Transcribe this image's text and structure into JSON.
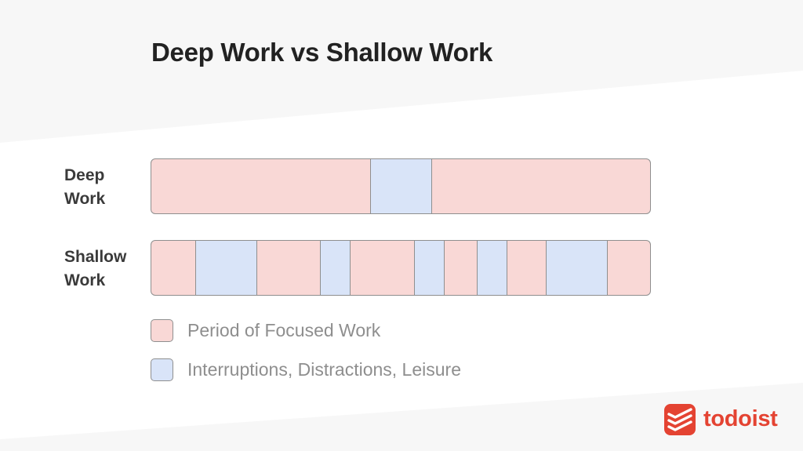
{
  "title": "Deep Work vs Shallow Work",
  "colors": {
    "focused": "#f9d8d6",
    "interruption": "#d9e4f8",
    "outline": "#8f8f8f",
    "brand": "#e44332"
  },
  "rows": [
    {
      "label_line1": "Deep",
      "label_line2": "Work",
      "interruptions": [
        {
          "start": 0.438,
          "end": 0.562
        }
      ]
    },
    {
      "label_line1": "Shallow",
      "label_line2": "Work",
      "interruptions": [
        {
          "start": 0.088,
          "end": 0.212
        },
        {
          "start": 0.338,
          "end": 0.4
        },
        {
          "start": 0.526,
          "end": 0.588
        },
        {
          "start": 0.652,
          "end": 0.714
        },
        {
          "start": 0.791,
          "end": 0.915
        }
      ]
    }
  ],
  "legend": {
    "focused_label": "Period of Focused Work",
    "interruption_label": "Interruptions, Distractions, Leisure"
  },
  "brand": {
    "name": "todoist",
    "icon": "todoist-logo-icon"
  }
}
